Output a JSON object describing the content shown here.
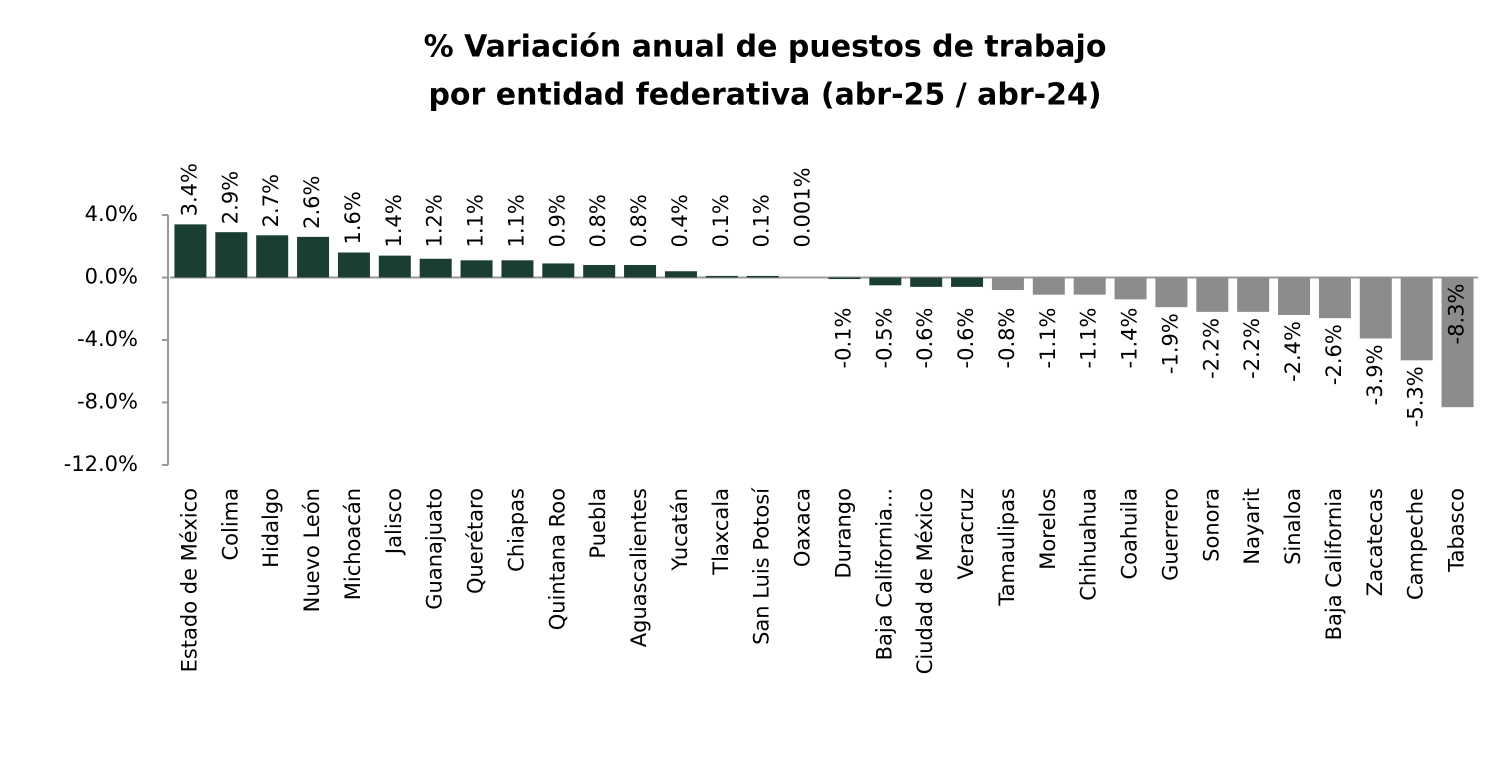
{
  "chart_data": {
    "type": "bar",
    "title": [
      "% Variación anual de puestos de trabajo",
      "por entidad federativa (abr-25 / abr-24)"
    ],
    "categories": [
      "Estado de México",
      "Colima",
      "Hidalgo",
      "Nuevo León",
      "Michoacán",
      "Jalisco",
      "Guanajuato",
      "Querétaro",
      "Chiapas",
      "Quintana Roo",
      "Puebla",
      "Aguascalientes",
      "Yucatán",
      "Tlaxcala",
      "San Luis Potosí",
      "Oaxaca",
      "Durango",
      "Baja California...",
      "Ciudad de México",
      "Veracruz",
      "Tamaulipas",
      "Morelos",
      "Chihuahua",
      "Coahuila",
      "Guerrero",
      "Sonora",
      "Nayarit",
      "Sinaloa",
      "Baja California",
      "Zacatecas",
      "Campeche",
      "Tabasco"
    ],
    "values": [
      3.4,
      2.9,
      2.7,
      2.6,
      1.6,
      1.4,
      1.2,
      1.1,
      1.1,
      0.9,
      0.8,
      0.8,
      0.4,
      0.1,
      0.1,
      0.001,
      -0.1,
      -0.5,
      -0.6,
      -0.6,
      -0.8,
      -1.1,
      -1.1,
      -1.4,
      -1.9,
      -2.2,
      -2.2,
      -2.4,
      -2.6,
      -3.9,
      -5.3,
      -8.3
    ],
    "value_labels": [
      "3.4%",
      "2.9%",
      "2.7%",
      "2.6%",
      "1.6%",
      "1.4%",
      "1.2%",
      "1.1%",
      "1.1%",
      "0.9%",
      "0.8%",
      "0.8%",
      "0.4%",
      "0.1%",
      "0.1%",
      "0.001%",
      "-0.1%",
      "-0.5%",
      "-0.6%",
      "-0.6%",
      "-0.8%",
      "-1.1%",
      "-1.1%",
      "-1.4%",
      "-1.9%",
      "-2.2%",
      "-2.2%",
      "-2.4%",
      "-2.6%",
      "-3.9%",
      "-5.3%",
      "-8.3%"
    ],
    "colors": [
      "#1a3f30",
      "#1a3f30",
      "#1a3f30",
      "#1a3f30",
      "#1a3f30",
      "#1a3f30",
      "#1a3f30",
      "#1a3f30",
      "#1a3f30",
      "#1a3f30",
      "#1a3f30",
      "#1a3f30",
      "#1a3f30",
      "#1a3f30",
      "#1a3f30",
      "#1a3f30",
      "#1a3f30",
      "#1a3f30",
      "#1a3f30",
      "#1a3f30",
      "#8c8c8c",
      "#8c8c8c",
      "#8c8c8c",
      "#8c8c8c",
      "#8c8c8c",
      "#8c8c8c",
      "#8c8c8c",
      "#8c8c8c",
      "#8c8c8c",
      "#8c8c8c",
      "#8c8c8c",
      "#8c8c8c"
    ],
    "ylim": [
      -12,
      4
    ],
    "yticks": [
      {
        "value": -12,
        "label": "-12.0%"
      },
      {
        "value": -8,
        "label": "-8.0%"
      },
      {
        "value": -4,
        "label": "-4.0%"
      },
      {
        "value": 0,
        "label": "0.0%"
      },
      {
        "value": 4,
        "label": "4.0%"
      }
    ],
    "grid": false
  }
}
